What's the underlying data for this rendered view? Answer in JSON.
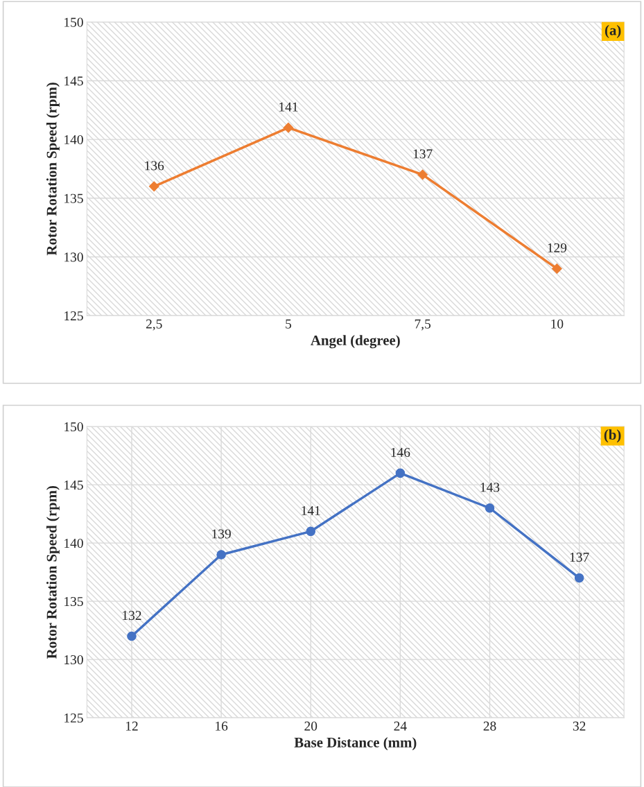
{
  "chart_data": [
    {
      "type": "line",
      "xlabel": "Angel (degree)",
      "ylabel": "Rotor Rotation Speed (rpm)",
      "categories": [
        "2,5",
        "5",
        "7,5",
        "10"
      ],
      "series": [
        {
          "color": "#ed7d31",
          "values": [
            136,
            141,
            137,
            129
          ]
        }
      ],
      "ylim": [
        125,
        150
      ],
      "yticks": [
        125,
        130,
        135,
        140,
        145,
        150
      ],
      "grid": "y",
      "marker": "diamond",
      "data_labels": true,
      "annotations": [
        "(a)"
      ]
    },
    {
      "type": "line",
      "xlabel": "Base Distance (mm)",
      "ylabel": "Rotor Rotation Speed (rpm)",
      "categories": [
        "12",
        "16",
        "20",
        "24",
        "28",
        "32"
      ],
      "series": [
        {
          "color": "#4472c4",
          "values": [
            132,
            139,
            141,
            146,
            143,
            137
          ]
        }
      ],
      "ylim": [
        125,
        150
      ],
      "yticks": [
        125,
        130,
        135,
        140,
        145,
        150
      ],
      "grid": true,
      "marker": "circle",
      "data_labels": true,
      "annotations": [
        "(b)"
      ]
    }
  ]
}
